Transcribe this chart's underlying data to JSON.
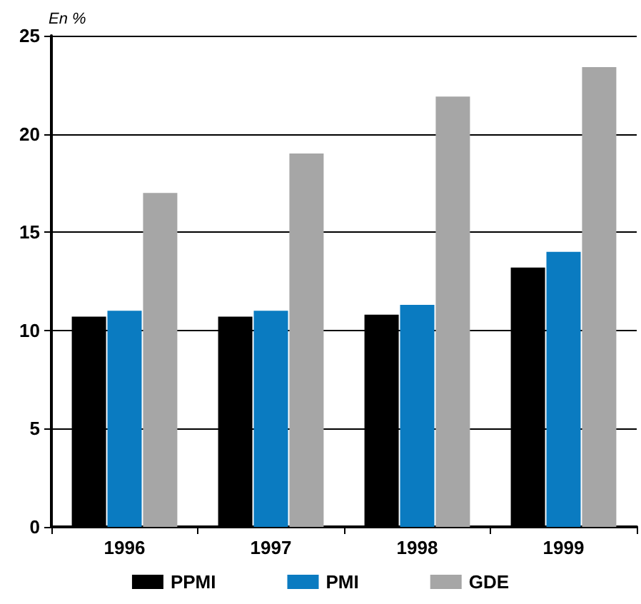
{
  "chart_data": {
    "type": "bar",
    "ylabel": "En %",
    "categories": [
      "1996",
      "1997",
      "1998",
      "1999"
    ],
    "series": [
      {
        "name": "PPMI",
        "color": "#000000",
        "values": [
          10.7,
          10.7,
          10.8,
          13.2
        ]
      },
      {
        "name": "PMI",
        "color": "#0a7bc1",
        "values": [
          11.0,
          11.0,
          11.3,
          14.0
        ]
      },
      {
        "name": "GDE",
        "color": "#a6a6a6",
        "values": [
          17.0,
          19.0,
          21.9,
          23.4
        ]
      }
    ],
    "ylim": [
      0,
      25
    ],
    "yticks": [
      0,
      5,
      10,
      15,
      20,
      25
    ],
    "grid": "y",
    "legend": "bottom"
  }
}
